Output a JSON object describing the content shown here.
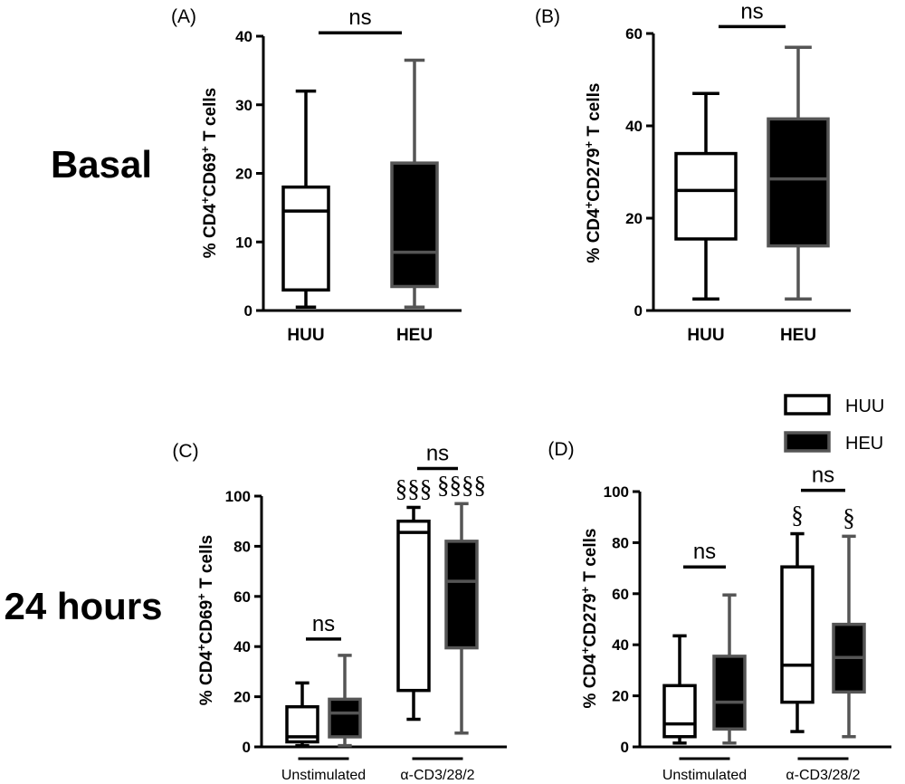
{
  "row_labels": {
    "top": "Basal",
    "bottom": "24 hours"
  },
  "legend": [
    {
      "label": "HUU",
      "fill": "#ffffff",
      "stroke": "#000000"
    },
    {
      "label": "HEU",
      "fill": "#000000",
      "stroke": "#555555"
    }
  ],
  "colors": {
    "huu_fill": "#ffffff",
    "huu_stroke": "#000000",
    "heu_fill": "#000000",
    "heu_stroke": "#555555",
    "axis": "#000000"
  },
  "chart_data": [
    {
      "panel": "(A)",
      "type": "box",
      "ylabel": "% CD4⁺CD69⁺ T cells",
      "ylim": [
        0,
        40
      ],
      "yticks": [
        0,
        10,
        20,
        30,
        40
      ],
      "categories": [
        "HUU",
        "HEU"
      ],
      "group_labels": [],
      "boxes": [
        {
          "group": "HUU",
          "min": 0.5,
          "q1": 3,
          "median": 14.5,
          "q3": 18,
          "max": 32,
          "marker": ""
        },
        {
          "group": "HEU",
          "min": 0.5,
          "q1": 3.5,
          "median": 8.5,
          "q3": 21.5,
          "max": 36.5,
          "marker": ""
        }
      ],
      "brackets": [
        {
          "between": [
            0,
            1
          ],
          "label": "ns",
          "y": 40.5
        }
      ]
    },
    {
      "panel": "(B)",
      "type": "box",
      "ylabel": "% CD4⁺CD279⁺ T cells",
      "ylim": [
        0,
        60
      ],
      "yticks": [
        0,
        20,
        40,
        60
      ],
      "categories": [
        "HUU",
        "HEU"
      ],
      "group_labels": [],
      "boxes": [
        {
          "group": "HUU",
          "min": 2.5,
          "q1": 15.5,
          "median": 26,
          "q3": 34,
          "max": 47,
          "marker": ""
        },
        {
          "group": "HEU",
          "min": 2.5,
          "q1": 14,
          "median": 28.5,
          "q3": 41.5,
          "max": 57,
          "marker": ""
        }
      ],
      "brackets": [
        {
          "between": [
            0,
            1
          ],
          "label": "ns",
          "y": 61.5
        }
      ]
    },
    {
      "panel": "(C)",
      "type": "box",
      "ylabel": "% CD4⁺CD69⁺ T cells",
      "ylim": [
        0,
        100
      ],
      "yticks": [
        0,
        20,
        40,
        60,
        80,
        100
      ],
      "categories": [],
      "group_labels": [
        "Unstimulated",
        "α-CD3/28/2"
      ],
      "boxes": [
        {
          "group": "HUU",
          "min": 0.5,
          "q1": 2,
          "median": 4,
          "q3": 16,
          "max": 25.5,
          "marker": ""
        },
        {
          "group": "HEU",
          "min": 0.5,
          "q1": 4,
          "median": 13.5,
          "q3": 19,
          "max": 36.5,
          "marker": ""
        },
        {
          "group": "HUU",
          "min": 11,
          "q1": 22.5,
          "median": 85.5,
          "q3": 90,
          "max": 95.5,
          "marker": "§§§"
        },
        {
          "group": "HEU",
          "min": 5.5,
          "q1": 39.5,
          "median": 66,
          "q3": 82,
          "max": 97,
          "marker": "§§§§"
        }
      ],
      "brackets": [
        {
          "between": [
            0,
            1
          ],
          "label": "ns",
          "y": 43
        },
        {
          "between": [
            2,
            3
          ],
          "label": "ns",
          "y": 111
        }
      ]
    },
    {
      "panel": "(D)",
      "type": "box",
      "ylabel": "% CD4⁺CD279⁺ T cells",
      "ylim": [
        0,
        100
      ],
      "yticks": [
        0,
        20,
        40,
        60,
        80,
        100
      ],
      "categories": [],
      "group_labels": [
        "Unstimulated",
        "α-CD3/28/2"
      ],
      "boxes": [
        {
          "group": "HUU",
          "min": 1.5,
          "q1": 4,
          "median": 9,
          "q3": 24,
          "max": 43.5,
          "marker": ""
        },
        {
          "group": "HEU",
          "min": 1.5,
          "q1": 7,
          "median": 17.5,
          "q3": 35.5,
          "max": 59.5,
          "marker": ""
        },
        {
          "group": "HUU",
          "min": 6,
          "q1": 17.5,
          "median": 32,
          "q3": 70.5,
          "max": 83.5,
          "marker": "§"
        },
        {
          "group": "HEU",
          "min": 4,
          "q1": 21.5,
          "median": 35,
          "q3": 48,
          "max": 82.5,
          "marker": "§"
        }
      ],
      "brackets": [
        {
          "between": [
            0,
            1
          ],
          "label": "ns",
          "y": 70.5
        },
        {
          "between": [
            2,
            3
          ],
          "label": "ns",
          "y": 100.5
        }
      ]
    }
  ]
}
